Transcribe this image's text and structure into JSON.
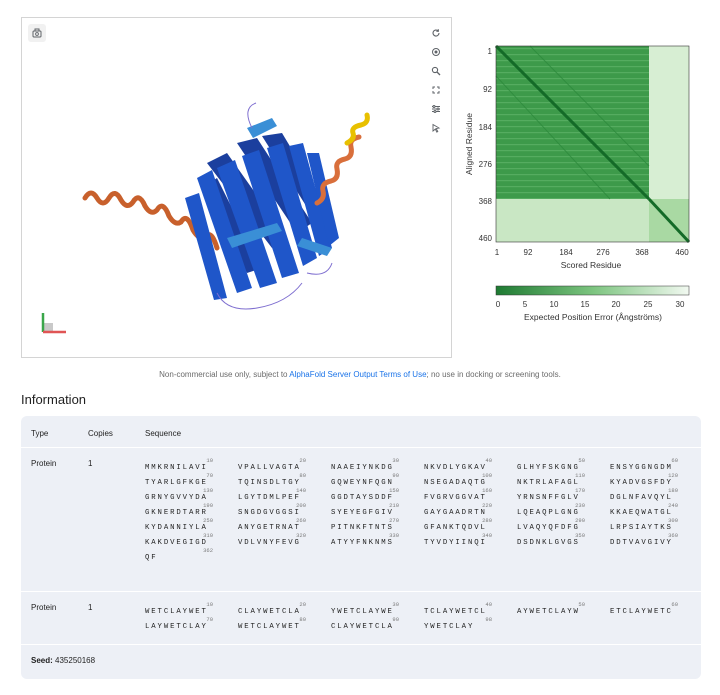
{
  "viewer": {
    "icons": {
      "left": "camera-icon",
      "tools": [
        "reset-icon",
        "center-icon",
        "zoom-icon",
        "fullscreen-icon",
        "settings-sliders-icon",
        "select-cursor-icon"
      ]
    },
    "colors": {
      "very_high": "#0053d6",
      "confident": "#65cbf3",
      "low": "#ffdb13",
      "very_low": "#ff7d45"
    }
  },
  "pae": {
    "y_axis_label": "Aligned Residue",
    "x_axis_label": "Scored Residue",
    "ticks": [
      "1",
      "92",
      "184",
      "276",
      "368",
      "460"
    ],
    "colorbar_ticks": [
      "0",
      "5",
      "10",
      "15",
      "20",
      "25",
      "30"
    ],
    "colorbar_label": "Expected Position Error (Ångströms)",
    "color_low": "#1e7a32",
    "color_high": "#f2f9f1"
  },
  "terms": {
    "prefix": "Non-commercial use only, subject to ",
    "link": "AlphaFold Server Output Terms of Use",
    "suffix": "; no use in docking or screening tools."
  },
  "information": {
    "title": "Information",
    "headers": {
      "type": "Type",
      "copies": "Copies",
      "sequence": "Sequence"
    },
    "entities": [
      {
        "type": "Protein",
        "copies": "1",
        "rows": [
          [
            [
              "10",
              "MMKRNILAVI"
            ],
            [
              "20",
              "VPALLVAGTA"
            ],
            [
              "30",
              "NAAEIYNKDG"
            ],
            [
              "40",
              "NKVDLYGKAV"
            ],
            [
              "50",
              "GLHYFSKGNG"
            ],
            [
              "60",
              "ENSYGGNGDM"
            ]
          ],
          [
            [
              "70",
              "TYARLGFKGE"
            ],
            [
              "80",
              "TQINSDLTGY"
            ],
            [
              "90",
              "GQWEYNFQGN"
            ],
            [
              "100",
              "NSEGADAQTG"
            ],
            [
              "110",
              "NKTRLAFAGL"
            ],
            [
              "120",
              "KYADVGSFDY"
            ]
          ],
          [
            [
              "130",
              "GRNYGVVYDA"
            ],
            [
              "140",
              "LGYTDMLPEF"
            ],
            [
              "150",
              "GGDTAYSDDF"
            ],
            [
              "160",
              "FVGRVGGVAT"
            ],
            [
              "170",
              "YRNSNFFGLV"
            ],
            [
              "180",
              "DGLNFAVQYL"
            ]
          ],
          [
            [
              "190",
              "GKNERDTARR"
            ],
            [
              "200",
              "SNGDGVGGSI"
            ],
            [
              "210",
              "SYEYEGFGIV"
            ],
            [
              "220",
              "GAYGAADRTN"
            ],
            [
              "230",
              "LQEAQPLGNG"
            ],
            [
              "240",
              "KKAEQWATGL"
            ]
          ],
          [
            [
              "250",
              "KYDANNIYLA"
            ],
            [
              "260",
              "ANYGETRNAT"
            ],
            [
              "270",
              "PITNKFTNTS"
            ],
            [
              "280",
              "GFANKTQDVL"
            ],
            [
              "290",
              "LVAQYQFDFG"
            ],
            [
              "300",
              "LRPSIAYTKS"
            ]
          ],
          [
            [
              "310",
              "KAKDVEGIGD"
            ],
            [
              "320",
              "VDLVNYFEVG"
            ],
            [
              "330",
              "ATYYFNKNMS"
            ],
            [
              "340",
              "TYVDYIINQI"
            ],
            [
              "350",
              "DSDNKLGVGS"
            ],
            [
              "360",
              "DDTVAVGIVY"
            ]
          ],
          [
            [
              "362",
              "QF"
            ]
          ]
        ]
      },
      {
        "type": "Protein",
        "copies": "1",
        "rows": [
          [
            [
              "10",
              "WETCLAYWET"
            ],
            [
              "20",
              "CLAYWETCLA"
            ],
            [
              "30",
              "YWETCLAYWE"
            ],
            [
              "40",
              "TCLAYWETCL"
            ],
            [
              "50",
              "AYWETCLAYW"
            ],
            [
              "60",
              "ETCLAYWETC"
            ]
          ],
          [
            [
              "70",
              "LAYWETCLAY"
            ],
            [
              "80",
              "WETCLAYWET"
            ],
            [
              "90",
              "CLAYWETCLA"
            ],
            [
              "98",
              "YWETCLAY"
            ]
          ]
        ]
      }
    ],
    "seed_label": "Seed:",
    "seed_value": "435250168"
  }
}
